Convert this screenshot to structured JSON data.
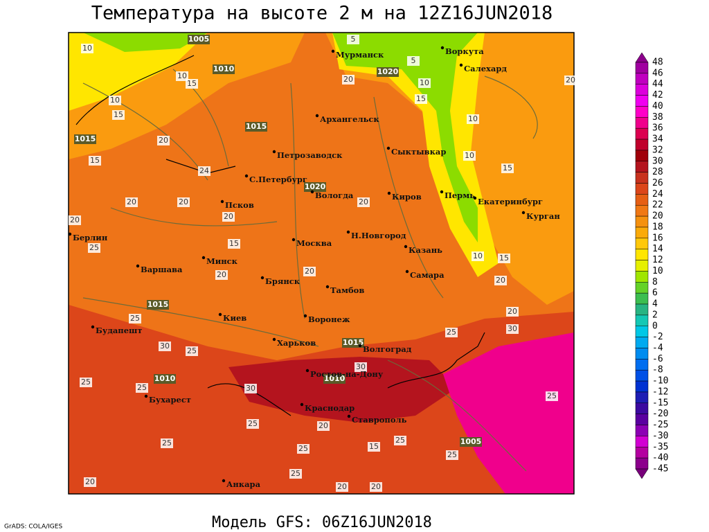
{
  "title": "Температура на высоте 2 м на 12Z16JUN2018",
  "footer": "Модель GFS: 06Z16JUN2018",
  "credit": "GrADS: COLA/IGES",
  "cities": [
    "Мурманск",
    "Воркута",
    "Салехард",
    "Архангельск",
    "Сыктывкар",
    "Петрозаводск",
    "С.Петербург",
    "Вологда",
    "Киров",
    "Пермь",
    "Екатеринбург",
    "Курган",
    "Псков",
    "Н.Новгород",
    "Казань",
    "Москва",
    "Берлин",
    "Минск",
    "Варшава",
    "Брянск",
    "Тамбов",
    "Самара",
    "Киев",
    "Воронеж",
    "Будапешт",
    "Харьков",
    "Волгоград",
    "Ростов-на-Дону",
    "Бухарест",
    "Краснодар",
    "Ставрополь",
    "Анкара"
  ],
  "isobar_labels": [
    1005,
    1010,
    1020,
    1015,
    1015,
    1020,
    1015,
    1015,
    1010,
    1010,
    1005
  ],
  "isotherm_labels": [
    10,
    10,
    15,
    10,
    15,
    20,
    15,
    24,
    20,
    20,
    20,
    20,
    15,
    25,
    20,
    20,
    20,
    10,
    15,
    10,
    10,
    15,
    10,
    15,
    20,
    20,
    30,
    25,
    25,
    30,
    25,
    25,
    25,
    30,
    25,
    20,
    25,
    25,
    25,
    25,
    20,
    20,
    20,
    25,
    25,
    30,
    15,
    5,
    5,
    20,
    20
  ],
  "colorbar": {
    "levels": [
      48,
      46,
      44,
      42,
      40,
      38,
      36,
      34,
      32,
      30,
      28,
      26,
      24,
      22,
      20,
      18,
      16,
      14,
      12,
      10,
      8,
      6,
      4,
      2,
      0,
      -2,
      -4,
      -6,
      -8,
      -10,
      -12,
      -15,
      -20,
      -25,
      -30,
      -35,
      -40,
      -45
    ],
    "colors": [
      "#8c008c",
      "#a000a0",
      "#c000c0",
      "#dc00dc",
      "#f000f0",
      "#ff00c8",
      "#f0008c",
      "#dc0050",
      "#c0002c",
      "#a0000a",
      "#b4141e",
      "#c8321e",
      "#dc461a",
      "#e65f14",
      "#f07814",
      "#f5910f",
      "#faaa0a",
      "#ffc80a",
      "#ffe600",
      "#e6f000",
      "#a0e600",
      "#64d228",
      "#3cbe50",
      "#28b482",
      "#14c8b4",
      "#00c8e6",
      "#00aaf0",
      "#008cf0",
      "#006ef0",
      "#0050e6",
      "#0032d2",
      "#1e1eb4",
      "#3c0aa0",
      "#5a00a0",
      "#8c00b4",
      "#d200d2",
      "#b400a0",
      "#8c008c",
      "#78007a"
    ]
  }
}
